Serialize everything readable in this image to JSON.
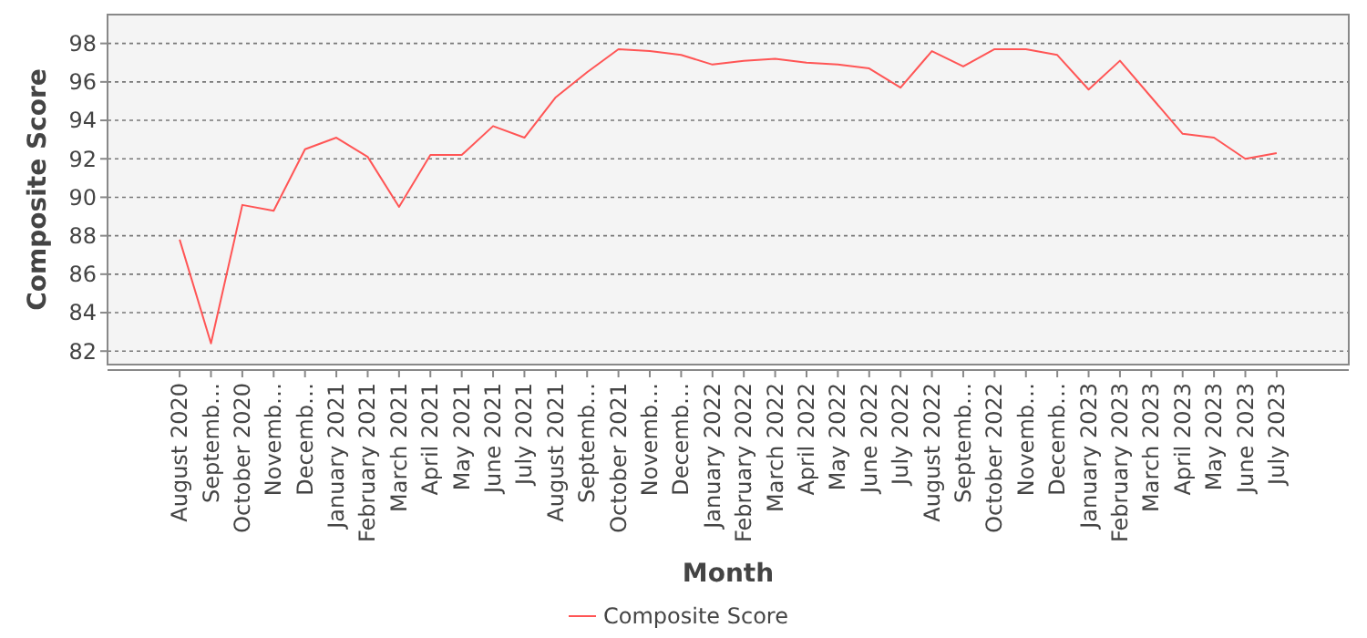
{
  "chart_data": {
    "type": "line",
    "xlabel": "Month",
    "ylabel": "Composite Score",
    "categories": [
      "August 2020",
      "Septemb…",
      "October 2020",
      "Novemb…",
      "Decemb…",
      "January 2021",
      "February 2021",
      "March 2021",
      "April 2021",
      "May 2021",
      "June 2021",
      "July 2021",
      "August 2021",
      "Septemb…",
      "October 2021",
      "Novemb…",
      "Decemb…",
      "January 2022",
      "February 2022",
      "March 2022",
      "April 2022",
      "May 2022",
      "June 2022",
      "July 2022",
      "August 2022",
      "Septemb…",
      "October 2022",
      "Novemb…",
      "Decemb…",
      "January 2023",
      "February 2023",
      "March 2023",
      "April 2023",
      "May 2023",
      "June 2023",
      "July 2023"
    ],
    "series": [
      {
        "name": "Composite Score",
        "color": "#ff5555",
        "values": [
          87.8,
          82.4,
          89.6,
          89.3,
          92.5,
          93.1,
          92.1,
          89.5,
          92.2,
          92.2,
          93.7,
          93.1,
          95.2,
          96.5,
          97.7,
          97.6,
          97.4,
          96.9,
          97.1,
          97.2,
          97.0,
          96.9,
          96.7,
          95.7,
          97.6,
          96.8,
          97.7,
          97.7,
          97.4,
          95.6,
          97.1,
          95.2,
          93.3,
          93.1,
          92.0,
          92.3
        ]
      }
    ],
    "ylim": [
      81.3,
      99.5
    ],
    "yticks": [
      82,
      84,
      86,
      88,
      90,
      92,
      94,
      96,
      98
    ],
    "grid": "y",
    "legend": "bottom",
    "marker": "none",
    "line_style": "solid"
  }
}
